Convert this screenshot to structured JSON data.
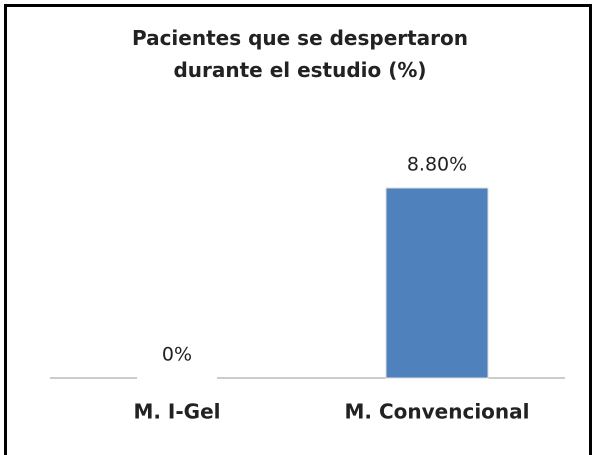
{
  "chart_data": {
    "type": "bar",
    "title": "Pacientes que se despertaron durante el estudio (%)",
    "categories": [
      "M. I-Gel",
      "M. Convencional"
    ],
    "values": [
      0,
      8.8
    ],
    "value_labels": [
      "0%",
      "8.80%"
    ],
    "color": "#4f81bd"
  }
}
